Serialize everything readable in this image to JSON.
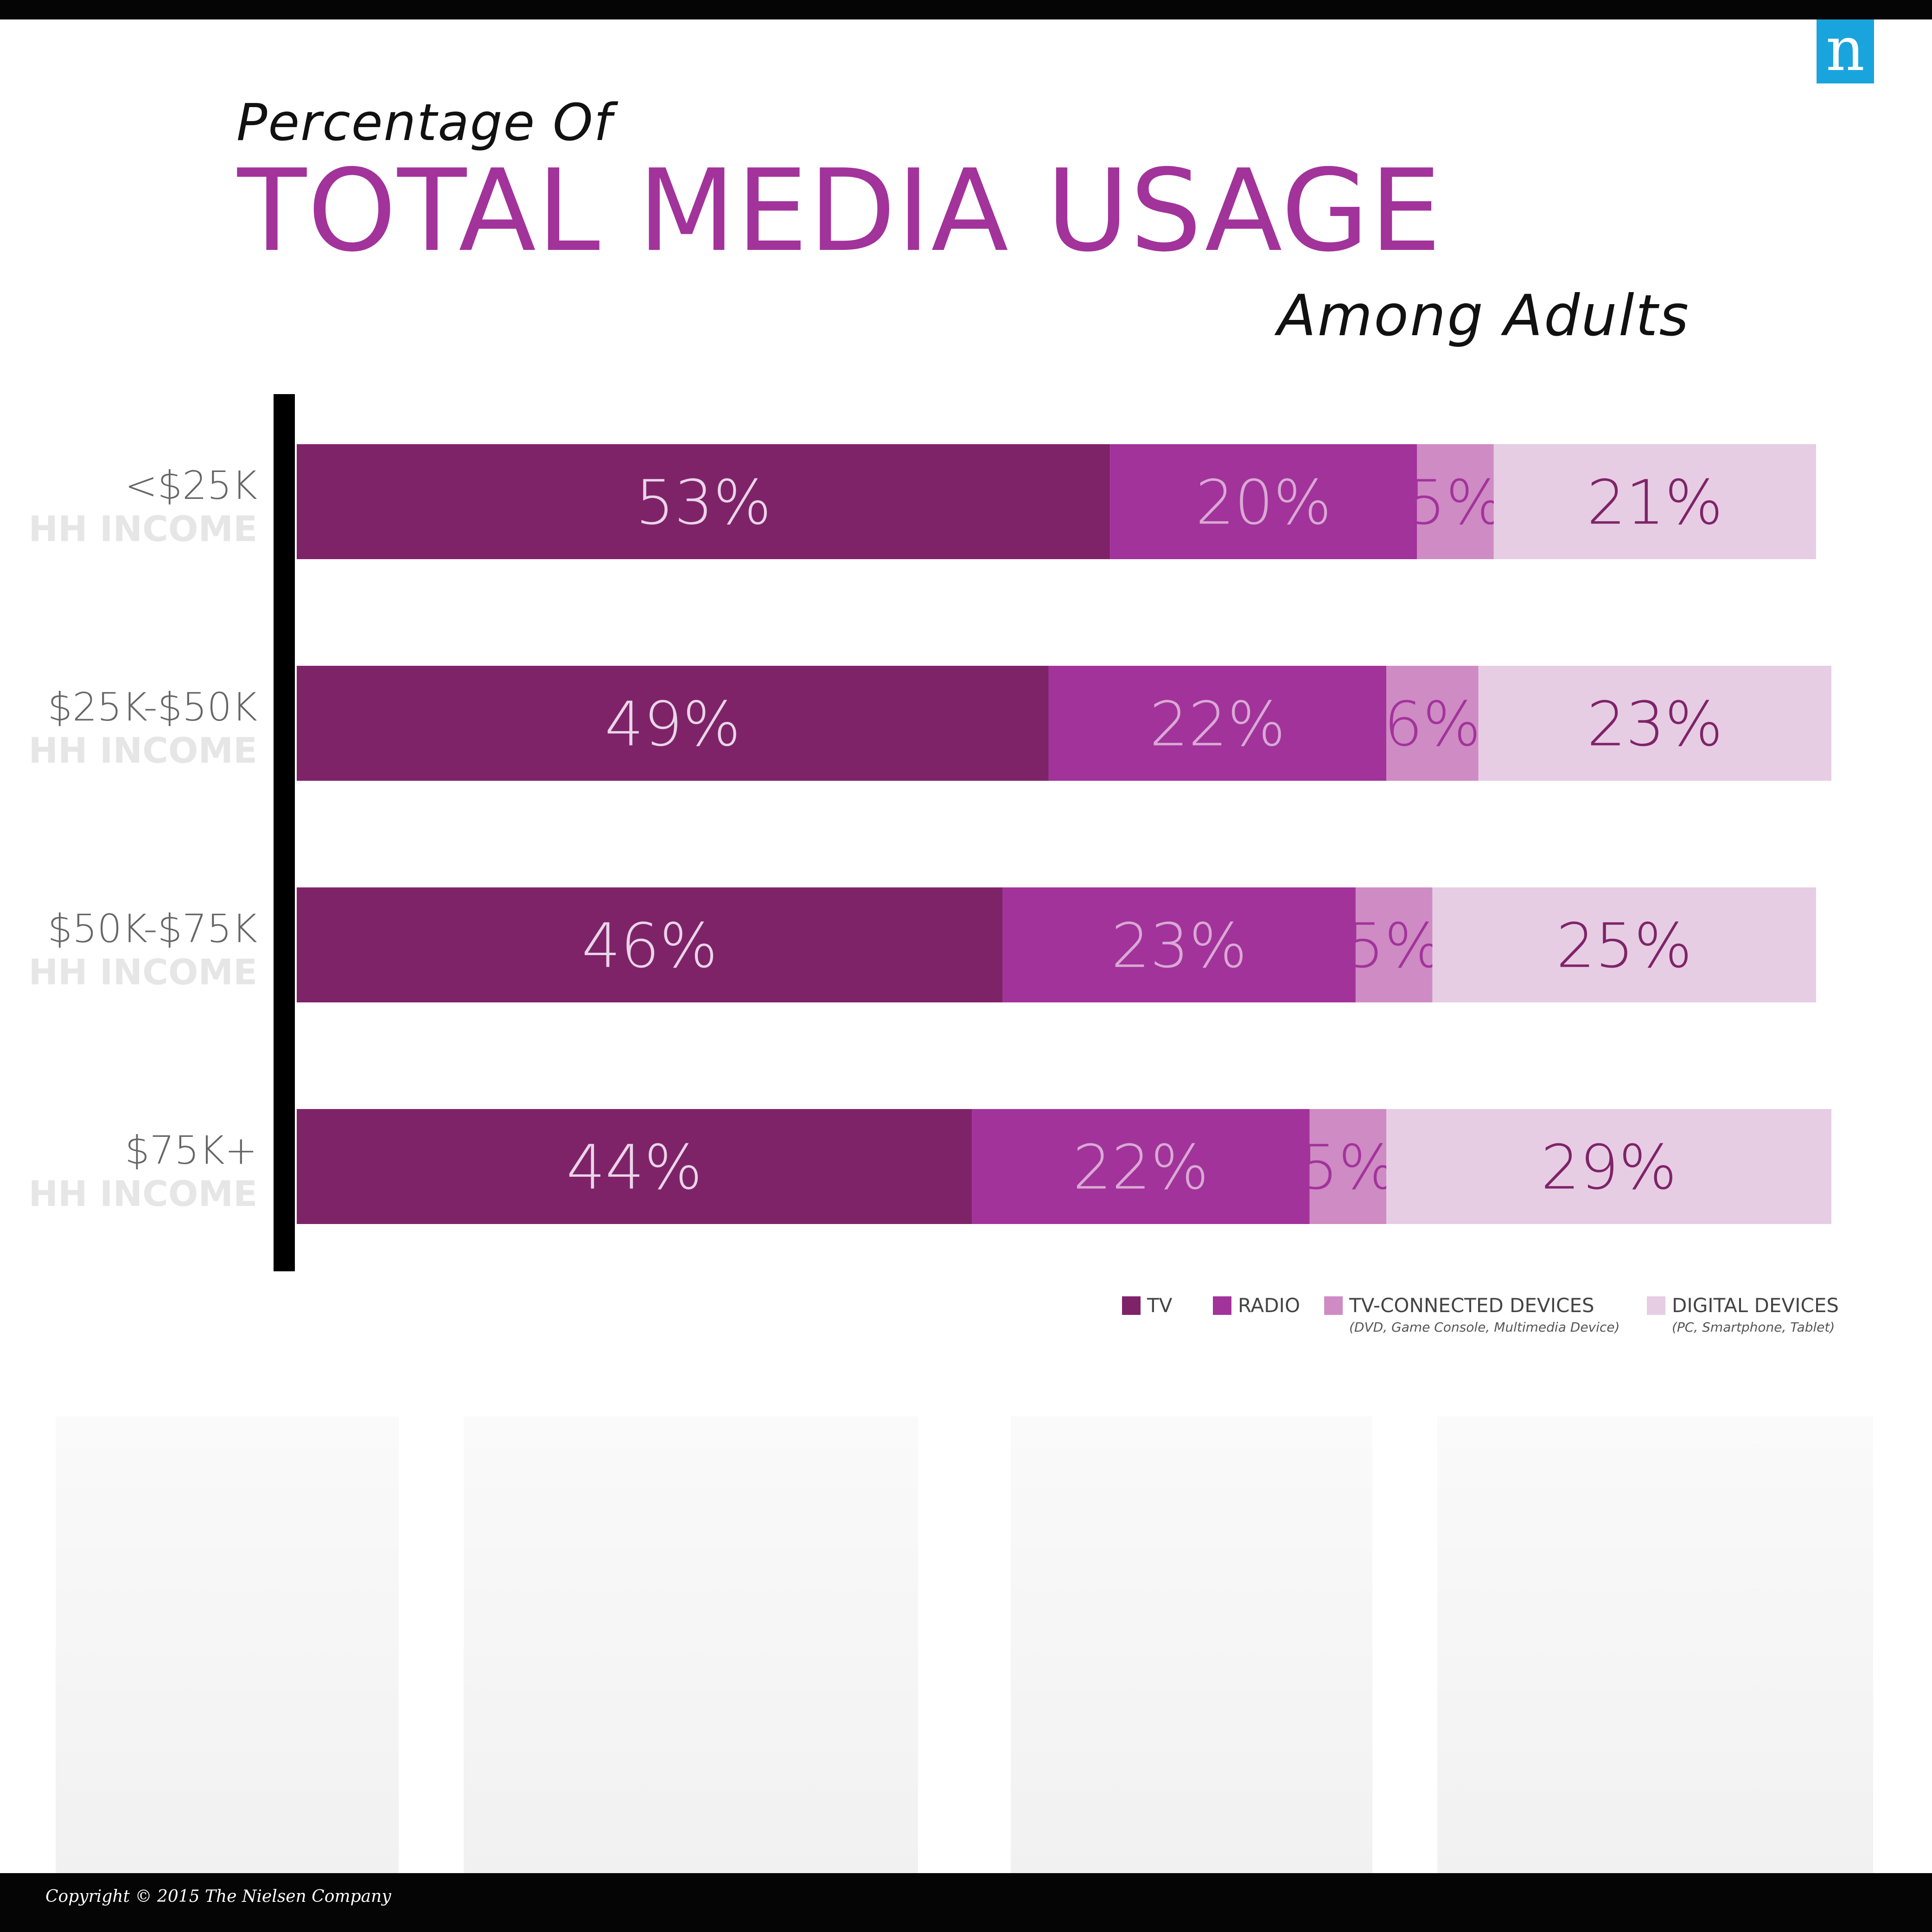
{
  "logo": {
    "text": "n",
    "color": "#1aa4dd"
  },
  "title": {
    "pre": "Percentage Of",
    "main": "TOTAL MEDIA USAGE",
    "sub": "Among Adults",
    "main_color": "#a2339b"
  },
  "chart_data": {
    "type": "bar",
    "orientation": "horizontal",
    "stacked": true,
    "categories": [
      "<$25K",
      "$25K-$50K",
      "$50K-$75K",
      "$75K+"
    ],
    "category_sublabel": "HH INCOME",
    "series": [
      {
        "name": "TV",
        "values": [
          53,
          49,
          46,
          44
        ],
        "color": "#7f2369",
        "label_color": "#e9d5e8"
      },
      {
        "name": "RADIO",
        "values": [
          20,
          22,
          23,
          22
        ],
        "color": "#a2339b",
        "label_color": "#d9a9d4"
      },
      {
        "name": "TV-CONNECTED DEVICES",
        "note": "(DVD, Game Console, Multimedia Device)",
        "values": [
          5,
          6,
          5,
          5
        ],
        "color": "#cf8bc4",
        "label_color": "#a2339b"
      },
      {
        "name": "DIGITAL DEVICES",
        "note": "(PC, Smartphone, Tablet)",
        "values": [
          21,
          23,
          25,
          29
        ],
        "color": "#e6cde3",
        "label_color": "#7f2369"
      }
    ],
    "value_suffix": "%",
    "legend_position": "bottom-right"
  },
  "footer": {
    "copyright": "Copyright © 2015 The Nielsen Company"
  }
}
